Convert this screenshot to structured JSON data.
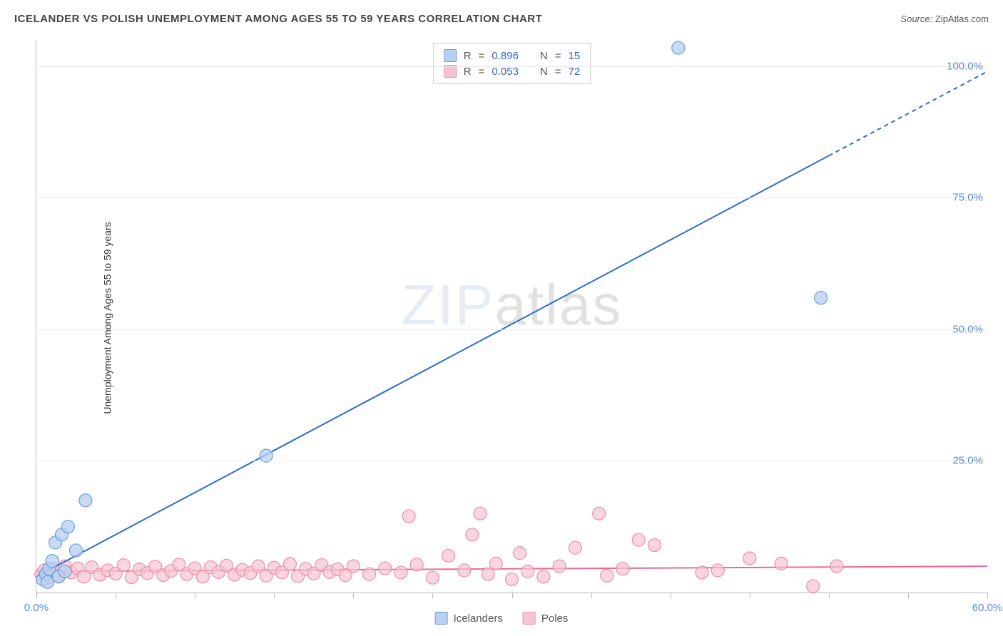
{
  "title": "ICELANDER VS POLISH UNEMPLOYMENT AMONG AGES 55 TO 59 YEARS CORRELATION CHART",
  "source_label": "Source:",
  "source_value": "ZipAtlas.com",
  "yaxis_title": "Unemployment Among Ages 55 to 59 years",
  "watermark_a": "ZIP",
  "watermark_b": "atlas",
  "chart": {
    "type": "scatter",
    "background_color": "#ffffff",
    "grid_color": "#e8e8e8",
    "axis_color": "#bbbbbb",
    "xlim": [
      0,
      60
    ],
    "ylim": [
      0,
      105
    ],
    "xtick_step": 5,
    "xtick_labels": [
      {
        "x": 0,
        "label": "0.0%"
      },
      {
        "x": 60,
        "label": "60.0%"
      }
    ],
    "ytick_labels": [
      {
        "y": 25,
        "label": "25.0%"
      },
      {
        "y": 50,
        "label": "50.0%"
      },
      {
        "y": 75,
        "label": "75.0%"
      },
      {
        "y": 100,
        "label": "100.0%"
      }
    ],
    "series": [
      {
        "name": "Icelanders",
        "color_fill": "#b7cff0",
        "color_stroke": "#6a9edc",
        "marker_radius": 9,
        "marker_opacity": 0.75,
        "R": "0.896",
        "N": "15",
        "trend": {
          "x1": 0,
          "y1": 3,
          "x2": 50,
          "y2": 83,
          "dash_from_x": 50,
          "x2_dash": 60,
          "y2_dash": 99,
          "stroke": "#2e6cd0",
          "width": 2
        },
        "points": [
          {
            "x": 0.4,
            "y": 2.5
          },
          {
            "x": 0.6,
            "y": 3.5
          },
          {
            "x": 0.7,
            "y": 2.0
          },
          {
            "x": 0.8,
            "y": 4.5
          },
          {
            "x": 1.0,
            "y": 6.0
          },
          {
            "x": 1.2,
            "y": 9.5
          },
          {
            "x": 1.4,
            "y": 3.0
          },
          {
            "x": 1.6,
            "y": 11.0
          },
          {
            "x": 1.8,
            "y": 4.0
          },
          {
            "x": 2.0,
            "y": 12.5
          },
          {
            "x": 2.5,
            "y": 8.0
          },
          {
            "x": 3.1,
            "y": 17.5
          },
          {
            "x": 14.5,
            "y": 26.0
          },
          {
            "x": 40.5,
            "y": 103.5
          },
          {
            "x": 49.5,
            "y": 56.0
          }
        ]
      },
      {
        "name": "Poles",
        "color_fill": "#f6c5d1",
        "color_stroke": "#e890a8",
        "marker_radius": 9,
        "marker_opacity": 0.7,
        "R": "0.053",
        "N": "72",
        "trend": {
          "x1": 0,
          "y1": 4.0,
          "x2": 60,
          "y2": 5.0,
          "stroke": "#e86a8f",
          "width": 2
        },
        "points": [
          {
            "x": 0.3,
            "y": 3.5
          },
          {
            "x": 0.5,
            "y": 4.2
          },
          {
            "x": 0.7,
            "y": 2.8
          },
          {
            "x": 1.0,
            "y": 4.5
          },
          {
            "x": 1.4,
            "y": 3.2
          },
          {
            "x": 1.8,
            "y": 5.0
          },
          {
            "x": 2.2,
            "y": 3.8
          },
          {
            "x": 2.6,
            "y": 4.6
          },
          {
            "x": 3.0,
            "y": 3.0
          },
          {
            "x": 3.5,
            "y": 4.8
          },
          {
            "x": 4.0,
            "y": 3.4
          },
          {
            "x": 4.5,
            "y": 4.2
          },
          {
            "x": 5.0,
            "y": 3.6
          },
          {
            "x": 5.5,
            "y": 5.2
          },
          {
            "x": 6.0,
            "y": 2.9
          },
          {
            "x": 6.5,
            "y": 4.4
          },
          {
            "x": 7.0,
            "y": 3.7
          },
          {
            "x": 7.5,
            "y": 4.9
          },
          {
            "x": 8.0,
            "y": 3.3
          },
          {
            "x": 8.5,
            "y": 4.1
          },
          {
            "x": 9.0,
            "y": 5.3
          },
          {
            "x": 9.5,
            "y": 3.5
          },
          {
            "x": 10.0,
            "y": 4.6
          },
          {
            "x": 10.5,
            "y": 3.0
          },
          {
            "x": 11.0,
            "y": 4.8
          },
          {
            "x": 11.5,
            "y": 3.9
          },
          {
            "x": 12.0,
            "y": 5.1
          },
          {
            "x": 12.5,
            "y": 3.4
          },
          {
            "x": 13.0,
            "y": 4.3
          },
          {
            "x": 13.5,
            "y": 3.7
          },
          {
            "x": 14.0,
            "y": 5.0
          },
          {
            "x": 14.5,
            "y": 3.2
          },
          {
            "x": 15.0,
            "y": 4.7
          },
          {
            "x": 15.5,
            "y": 3.8
          },
          {
            "x": 16.0,
            "y": 5.4
          },
          {
            "x": 16.5,
            "y": 3.1
          },
          {
            "x": 17.0,
            "y": 4.5
          },
          {
            "x": 17.5,
            "y": 3.6
          },
          {
            "x": 18.0,
            "y": 5.2
          },
          {
            "x": 18.5,
            "y": 3.9
          },
          {
            "x": 19.0,
            "y": 4.4
          },
          {
            "x": 19.5,
            "y": 3.3
          },
          {
            "x": 20.0,
            "y": 5.0
          },
          {
            "x": 21.0,
            "y": 3.5
          },
          {
            "x": 22.0,
            "y": 4.6
          },
          {
            "x": 23.0,
            "y": 3.8
          },
          {
            "x": 24.0,
            "y": 5.3
          },
          {
            "x": 23.5,
            "y": 14.5
          },
          {
            "x": 25.0,
            "y": 2.8
          },
          {
            "x": 26.0,
            "y": 7.0
          },
          {
            "x": 27.0,
            "y": 4.2
          },
          {
            "x": 27.5,
            "y": 11.0
          },
          {
            "x": 28.0,
            "y": 15.0
          },
          {
            "x": 28.5,
            "y": 3.5
          },
          {
            "x": 29.0,
            "y": 5.5
          },
          {
            "x": 30.0,
            "y": 2.5
          },
          {
            "x": 30.5,
            "y": 7.5
          },
          {
            "x": 31.0,
            "y": 4.0
          },
          {
            "x": 32.0,
            "y": 3.0
          },
          {
            "x": 33.0,
            "y": 5.0
          },
          {
            "x": 34.0,
            "y": 8.5
          },
          {
            "x": 35.5,
            "y": 15.0
          },
          {
            "x": 36.0,
            "y": 3.2
          },
          {
            "x": 37.0,
            "y": 4.5
          },
          {
            "x": 38.0,
            "y": 10.0
          },
          {
            "x": 39.0,
            "y": 9.0
          },
          {
            "x": 42.0,
            "y": 3.8
          },
          {
            "x": 45.0,
            "y": 6.5
          },
          {
            "x": 47.0,
            "y": 5.5
          },
          {
            "x": 49.0,
            "y": 1.2
          },
          {
            "x": 50.5,
            "y": 5.0
          },
          {
            "x": 43.0,
            "y": 4.2
          }
        ]
      }
    ],
    "stats_labels": {
      "R": "R",
      "N": "N",
      "eq": "="
    }
  },
  "bottom_legend": [
    {
      "label": "Icelanders",
      "fill": "#b7cff0",
      "stroke": "#6a9edc"
    },
    {
      "label": "Poles",
      "fill": "#f6c5d1",
      "stroke": "#e890a8"
    }
  ]
}
